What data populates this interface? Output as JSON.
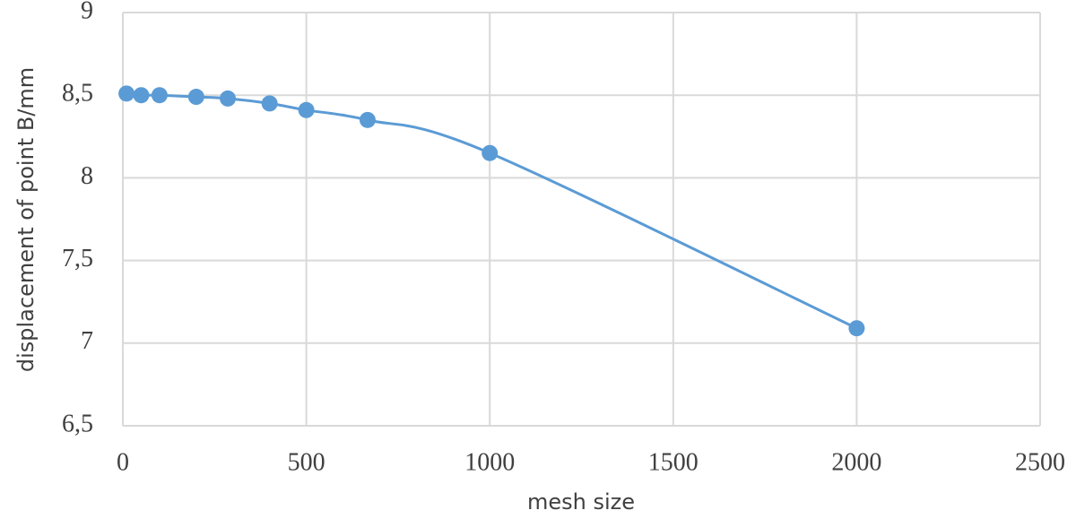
{
  "chart_data": {
    "type": "line",
    "xlabel": "mesh size",
    "ylabel": "displacement of point B/mm",
    "x": [
      10,
      50,
      100,
      200,
      286,
      400,
      500,
      667,
      1000,
      2000
    ],
    "series": [
      {
        "color": "#5b9bd5",
        "values": [
          8.51,
          8.5,
          8.5,
          8.49,
          8.48,
          8.45,
          8.41,
          8.35,
          8.15,
          7.09
        ]
      }
    ],
    "xlim": [
      0,
      2500
    ],
    "xticks": [
      0,
      500,
      1000,
      1500,
      2000,
      2500
    ],
    "ylim": [
      6.5,
      9
    ],
    "yticks": [
      {
        "value": 6.5,
        "label": "6,5"
      },
      7,
      {
        "value": 7.5,
        "label": "7,5"
      },
      8,
      {
        "value": 8.5,
        "label": "8,5"
      },
      9
    ],
    "grid": true,
    "smooth": true
  }
}
